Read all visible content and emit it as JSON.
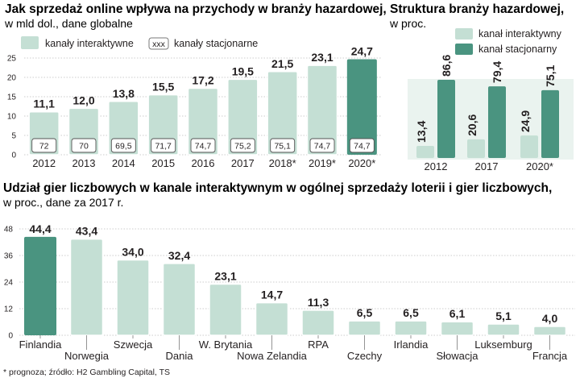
{
  "colors": {
    "interactive": "#c4dfd4",
    "stationary": "#4a9480",
    "panel": "#eaf3ef",
    "grid": "#bdbdbd",
    "text": "#231f20"
  },
  "footnote": "* prognoza; źródło: H2 Gambling Capital, TS",
  "chart_data": [
    {
      "type": "bar",
      "title": "Jak sprzedaż online wpływa na przychody w branży hazardowej,",
      "subtitle": "w mld dol., dane globalne",
      "legend": [
        {
          "label": "kanały interaktywne",
          "color": "#c4dfd4"
        },
        {
          "label": "kanały stacjonarne",
          "marker": "xxx"
        }
      ],
      "categories": [
        "2012",
        "2013",
        "2014",
        "2015",
        "2016",
        "2017",
        "2018*",
        "2019*",
        "2020*"
      ],
      "values": [
        11.1,
        12.0,
        13.8,
        15.5,
        17.2,
        19.5,
        21.5,
        23.1,
        24.7
      ],
      "value_labels": [
        "11,1",
        "12,0",
        "13,8",
        "15,5",
        "17,2",
        "19,5",
        "21,5",
        "23,1",
        "24,7"
      ],
      "stationary_values": [
        "72",
        "70",
        "69,5",
        "71,7",
        "74,7",
        "75,2",
        "75,1",
        "74,7",
        "74,7"
      ],
      "highlight_index": 8,
      "ylim": [
        0,
        25
      ],
      "yticks": [
        "0",
        "5",
        "10",
        "15",
        "20",
        "25"
      ],
      "grid": true
    },
    {
      "type": "bar",
      "title": "Struktura branży hazardowej,",
      "subtitle": "w proc.",
      "legend": [
        {
          "label": "kanał interaktywny",
          "color": "#c4dfd4"
        },
        {
          "label": "kanał stacjonarny",
          "color": "#4a9480"
        }
      ],
      "categories": [
        "2012",
        "2017",
        "2020*"
      ],
      "series": [
        {
          "name": "kanał interaktywny",
          "values": [
            13.4,
            20.6,
            24.9
          ],
          "labels": [
            "13,4",
            "20,6",
            "24,9"
          ]
        },
        {
          "name": "kanał stacjonarny",
          "values": [
            86.6,
            79.4,
            75.1
          ],
          "labels": [
            "86,6",
            "79,4",
            "75,1"
          ]
        }
      ],
      "ylim": [
        0,
        100
      ]
    },
    {
      "type": "bar",
      "title": "Udział gier liczbowych w kanale interaktywnym w ogólnej sprzedaży loterii i gier liczbowych,",
      "subtitle": "w proc., dane za 2017 r.",
      "categories": [
        "Finlandia",
        "Norwegia",
        "Szwecja",
        "Dania",
        "W. Brytania",
        "Nowa Zelandia",
        "RPA",
        "Czechy",
        "Irlandia",
        "Słowacja",
        "Luksemburg",
        "Francja"
      ],
      "values": [
        44.4,
        43.4,
        34.0,
        32.4,
        23.1,
        14.7,
        11.3,
        6.5,
        6.5,
        6.1,
        5.1,
        4.0
      ],
      "value_labels": [
        "44,4",
        "43,4",
        "34,0",
        "32,4",
        "23,1",
        "14,7",
        "11,3",
        "6,5",
        "6,5",
        "6,1",
        "5,1",
        "4,0"
      ],
      "label_rows": [
        "upper",
        "lower",
        "upper",
        "lower",
        "upper",
        "lower",
        "upper",
        "lower",
        "upper",
        "lower",
        "upper",
        "lower"
      ],
      "highlight_index": 0,
      "ylim": [
        0,
        48
      ],
      "yticks": [
        "0",
        "12",
        "24",
        "36",
        "48"
      ],
      "grid": true
    }
  ]
}
